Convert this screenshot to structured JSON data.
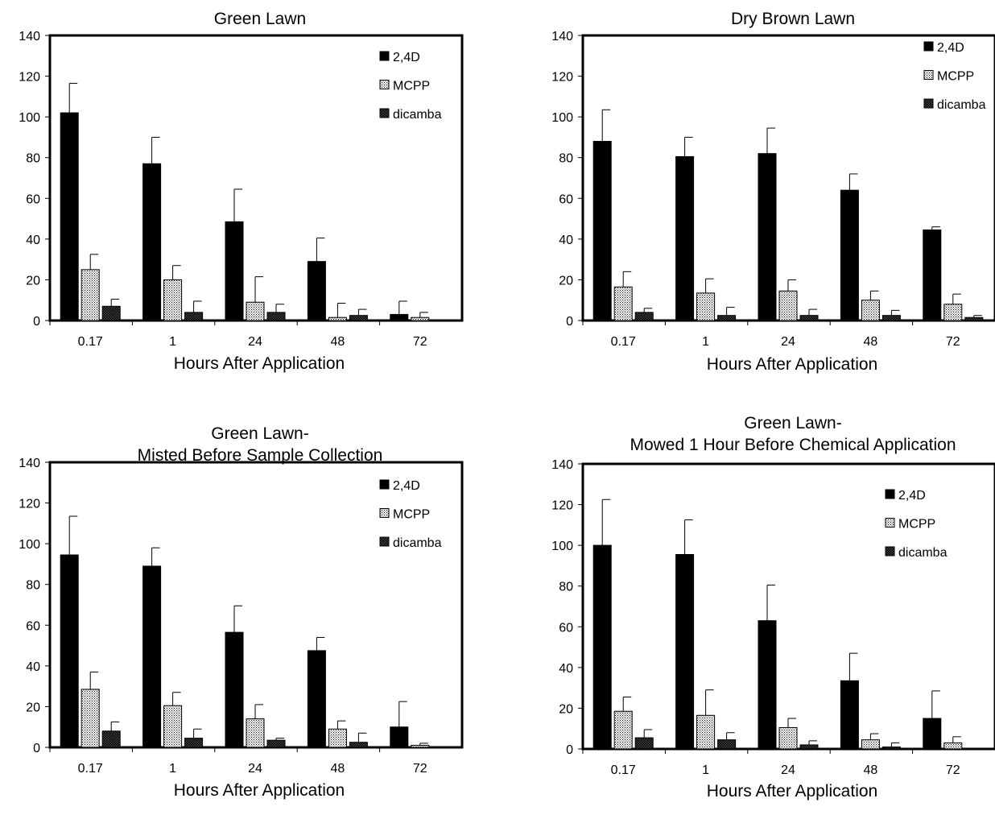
{
  "chart_data": [
    {
      "type": "bar",
      "title": "Green Lawn",
      "xlabel": "Hours After Application",
      "ylabel": "",
      "ylim": [
        0,
        140
      ],
      "yticks": [
        0,
        20,
        40,
        60,
        80,
        100,
        120,
        140
      ],
      "categories": [
        "0.17",
        "1",
        "24",
        "48",
        "72"
      ],
      "legend_position": "top-right",
      "series": [
        {
          "name": "2,4D",
          "values": [
            102,
            77,
            48.5,
            29,
            3
          ],
          "errors": [
            14.5,
            13,
            16,
            11.5,
            6.5
          ]
        },
        {
          "name": "MCPP",
          "values": [
            25,
            20,
            9,
            1.5,
            1.5
          ],
          "errors": [
            7.5,
            7,
            12.5,
            7,
            2.5
          ]
        },
        {
          "name": "dicamba",
          "values": [
            7,
            4,
            4,
            2.5,
            0
          ],
          "errors": [
            3.5,
            5.5,
            4,
            3,
            0
          ]
        }
      ]
    },
    {
      "type": "bar",
      "title": "Dry Brown Lawn",
      "xlabel": "Hours After Application",
      "ylabel": "",
      "ylim": [
        0,
        140
      ],
      "yticks": [
        0,
        20,
        40,
        60,
        80,
        100,
        120,
        140
      ],
      "categories": [
        "0.17",
        "1",
        "24",
        "48",
        "72"
      ],
      "legend_position": "top-right",
      "series": [
        {
          "name": "2,4D",
          "values": [
            88,
            80.5,
            82,
            64,
            44.5
          ],
          "errors": [
            15.5,
            9.5,
            12.5,
            8,
            1.5
          ]
        },
        {
          "name": "MCPP",
          "values": [
            16.5,
            13.5,
            14.5,
            10,
            8
          ],
          "errors": [
            7.5,
            7,
            5.5,
            4.5,
            5
          ]
        },
        {
          "name": "dicamba",
          "values": [
            4,
            2.5,
            2.5,
            2.5,
            1.5
          ],
          "errors": [
            2,
            4,
            3,
            2.5,
            1
          ]
        }
      ]
    },
    {
      "type": "bar",
      "title": "Green Lawn-",
      "subtitle": "Misted Before Sample Collection",
      "xlabel": "Hours After Application",
      "ylabel": "",
      "ylim": [
        0,
        140
      ],
      "yticks": [
        0,
        20,
        40,
        60,
        80,
        100,
        120,
        140
      ],
      "categories": [
        "0.17",
        "1",
        "24",
        "48",
        "72"
      ],
      "legend_position": "top-right",
      "series": [
        {
          "name": "2,4D",
          "values": [
            94.5,
            89,
            56.5,
            47.5,
            10
          ],
          "errors": [
            19,
            9,
            13,
            6.5,
            12.5
          ]
        },
        {
          "name": "MCPP",
          "values": [
            28.5,
            20.5,
            14,
            9,
            1
          ],
          "errors": [
            8.5,
            6.5,
            7,
            4,
            1
          ]
        },
        {
          "name": "dicamba",
          "values": [
            8,
            4.5,
            3.5,
            2.5,
            0
          ],
          "errors": [
            4.5,
            4.5,
            1,
            4.5,
            0
          ]
        }
      ]
    },
    {
      "type": "bar",
      "title": "Green Lawn-",
      "subtitle": "Mowed 1 Hour Before Chemical Application",
      "xlabel": "Hours After Application",
      "ylabel": "",
      "ylim": [
        0,
        140
      ],
      "yticks": [
        0,
        20,
        40,
        60,
        80,
        100,
        120,
        140
      ],
      "categories": [
        "0.17",
        "1",
        "24",
        "48",
        "72"
      ],
      "legend_position": "top-right",
      "series": [
        {
          "name": "2,4D",
          "values": [
            100,
            95.5,
            63,
            33.5,
            15
          ],
          "errors": [
            22.5,
            17,
            17.5,
            13.5,
            13.5
          ]
        },
        {
          "name": "MCPP",
          "values": [
            18.5,
            16.5,
            10.5,
            4.5,
            3
          ],
          "errors": [
            7,
            12.5,
            4.5,
            3,
            3
          ]
        },
        {
          "name": "dicamba",
          "values": [
            5.5,
            4.5,
            2,
            1,
            0
          ],
          "errors": [
            4,
            3.5,
            2,
            2,
            0
          ]
        }
      ]
    }
  ]
}
